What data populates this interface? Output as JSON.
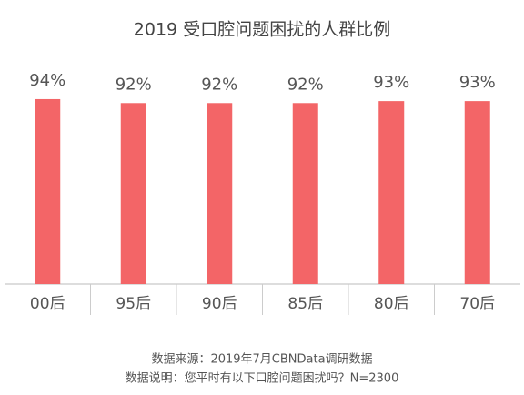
{
  "chart_data": {
    "type": "bar",
    "title": "2019 受口腔问题困扰的人群比例",
    "categories": [
      "00后",
      "95后",
      "90后",
      "85后",
      "80后",
      "70后"
    ],
    "values": [
      94,
      92,
      92,
      92,
      93,
      93
    ],
    "value_labels": [
      "94%",
      "92%",
      "92%",
      "92%",
      "93%",
      "93%"
    ],
    "color": "#f36567",
    "ylim": [
      0,
      100
    ],
    "source": "数据来源：2019年7月CBNData调研数据",
    "note": "数据说明：您平时有以下口腔问题困扰吗？N=2300"
  }
}
